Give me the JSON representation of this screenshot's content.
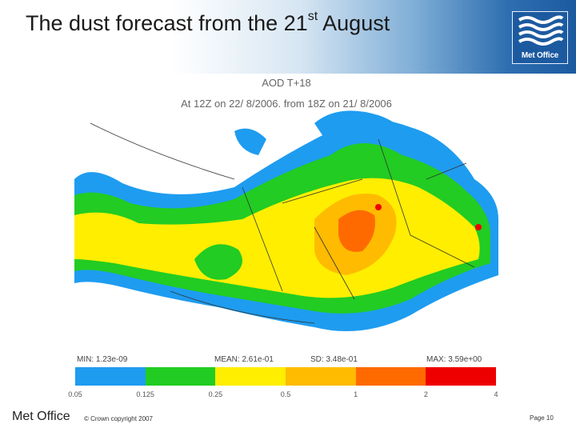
{
  "header": {
    "title_main": "The dust forecast from the 21",
    "title_sup": "st",
    "title_end": " August",
    "logo_text": "Met Office"
  },
  "plot": {
    "title_line1": "AOD T+18",
    "title_line2": "At 12Z on 22/ 8/2006, from 18Z on 21/ 8/2006",
    "stats": [
      {
        "label": "MIN:",
        "value": "1.23e-09"
      },
      {
        "label": "MEAN:",
        "value": "2.61e-01"
      },
      {
        "label": "SD:",
        "value": "3.48e-01"
      },
      {
        "label": "MAX:",
        "value": "3.59e+00"
      }
    ],
    "colorbar": {
      "colors": [
        "#1e9cf0",
        "#22cc22",
        "#ffee00",
        "#ffbb00",
        "#ff6a00",
        "#ee0000"
      ],
      "ticks": [
        "0.05",
        "0.125",
        "0.25",
        "0.5",
        "1",
        "2",
        "4"
      ]
    }
  },
  "footer": {
    "org": "Met Office",
    "copyright": "© Crown copyright 2007",
    "page": "Page 10"
  }
}
